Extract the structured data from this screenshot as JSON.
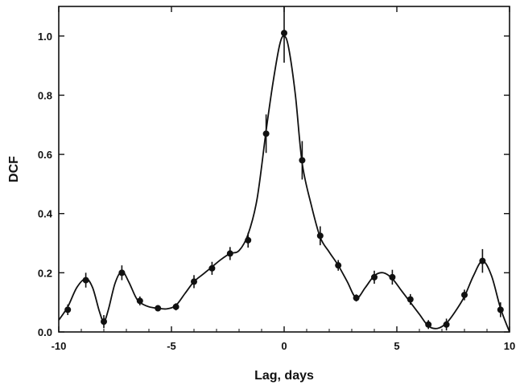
{
  "chart_data": {
    "type": "scatter",
    "title": "",
    "xlabel": "Lag, days",
    "ylabel": "DCF",
    "xlim": [
      -10,
      10
    ],
    "ylim": [
      0,
      1.1
    ],
    "xticks": [
      -10,
      -5,
      0,
      5,
      10
    ],
    "xtick_labels": [
      "-10",
      "-5",
      "0",
      "5",
      "10"
    ],
    "yticks": [
      0.0,
      0.2,
      0.4,
      0.6,
      0.8,
      1.0
    ],
    "ytick_labels": [
      "0.0",
      "0.2",
      "0.4",
      "0.6",
      "0.8",
      "1.0"
    ],
    "grid": false,
    "legend": "none",
    "series": [
      {
        "marker": "filled-circle",
        "color": "#111111",
        "error_bars": true,
        "x": [
          -9.6,
          -8.8,
          -8.0,
          -7.2,
          -6.4,
          -5.6,
          -4.8,
          -4.0,
          -3.2,
          -2.4,
          -1.6,
          -0.8,
          0.0,
          0.8,
          1.6,
          2.4,
          3.2,
          4.0,
          4.8,
          5.6,
          6.4,
          7.2,
          8.0,
          8.8,
          9.6
        ],
        "y": [
          0.075,
          0.175,
          0.035,
          0.2,
          0.105,
          0.08,
          0.085,
          0.17,
          0.215,
          0.265,
          0.31,
          0.67,
          1.01,
          0.58,
          0.325,
          0.225,
          0.115,
          0.185,
          0.185,
          0.11,
          0.025,
          0.025,
          0.125,
          0.24,
          0.075
        ],
        "err": [
          0.018,
          0.025,
          0.022,
          0.025,
          0.015,
          0.01,
          0.012,
          0.022,
          0.022,
          0.022,
          0.025,
          0.065,
          0.1,
          0.065,
          0.032,
          0.018,
          0.012,
          0.022,
          0.025,
          0.018,
          0.015,
          0.02,
          0.018,
          0.04,
          0.025
        ]
      },
      {
        "style": "smooth-line",
        "color": "#111111",
        "x": [
          -10.0,
          -9.6,
          -9.2,
          -8.8,
          -8.5,
          -8.2,
          -8.0,
          -7.8,
          -7.5,
          -7.2,
          -6.9,
          -6.6,
          -6.4,
          -6.0,
          -5.6,
          -5.2,
          -4.8,
          -4.4,
          -4.0,
          -3.6,
          -3.2,
          -2.8,
          -2.4,
          -2.0,
          -1.6,
          -1.2,
          -0.8,
          -0.5,
          -0.2,
          0.0,
          0.2,
          0.5,
          0.8,
          1.2,
          1.6,
          2.0,
          2.4,
          2.8,
          3.2,
          3.6,
          4.0,
          4.4,
          4.8,
          5.2,
          5.6,
          6.0,
          6.4,
          6.8,
          7.2,
          7.6,
          8.0,
          8.4,
          8.8,
          9.2,
          9.6,
          10.0
        ],
        "y": [
          0.04,
          0.085,
          0.15,
          0.18,
          0.15,
          0.07,
          0.035,
          0.075,
          0.165,
          0.205,
          0.17,
          0.12,
          0.1,
          0.085,
          0.08,
          0.078,
          0.09,
          0.13,
          0.17,
          0.195,
          0.22,
          0.245,
          0.265,
          0.275,
          0.33,
          0.45,
          0.68,
          0.84,
          0.97,
          1.0,
          0.96,
          0.8,
          0.57,
          0.43,
          0.32,
          0.27,
          0.225,
          0.17,
          0.115,
          0.15,
          0.19,
          0.2,
          0.18,
          0.14,
          0.1,
          0.06,
          0.02,
          0.012,
          0.03,
          0.07,
          0.12,
          0.19,
          0.24,
          0.19,
          0.08,
          0.0
        ]
      }
    ]
  }
}
